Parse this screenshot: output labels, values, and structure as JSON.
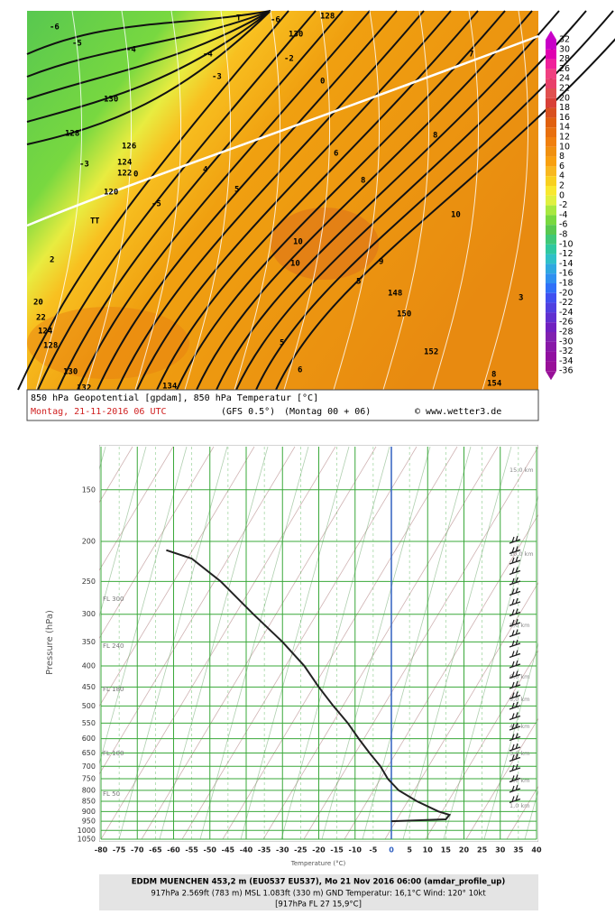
{
  "map": {
    "caption": "850 hPa Geopotential [gpdam], 850 hPa Temperatur [°C]",
    "date": "Montag, 21-11-2016  06 UTC",
    "model": "(GFS 0.5°)",
    "run": "(Montag 00 + 06)",
    "credit": "© www.wetter3.de",
    "labels": [
      "-6",
      "-5",
      "-4",
      "T",
      "-6",
      "128",
      "130",
      "-2",
      "0",
      "-4",
      "-3",
      "130",
      "128",
      "126",
      "124",
      "122",
      "120",
      "-3",
      "0",
      "-5",
      "T",
      "2",
      "4",
      "5",
      "6",
      "8",
      "10",
      "10",
      "5",
      "10",
      "9",
      "148",
      "150",
      "152",
      "154",
      "134",
      "132",
      "130",
      "128",
      "124",
      "22",
      "20",
      "T",
      "7",
      "8",
      "3",
      "5",
      "6",
      "8"
    ]
  },
  "colorbar": {
    "levels": [
      32,
      30,
      28,
      26,
      24,
      22,
      20,
      18,
      16,
      14,
      12,
      10,
      8,
      6,
      4,
      2,
      0,
      -2,
      -4,
      -6,
      -8,
      -10,
      -12,
      -14,
      -16,
      -18,
      -20,
      -22,
      -24,
      -26,
      -28,
      -30,
      -32,
      -34,
      -36
    ],
    "colors": [
      "#c800c8",
      "#e000b0",
      "#f0209a",
      "#f04080",
      "#e8406a",
      "#e05050",
      "#d84038",
      "#d85020",
      "#e06010",
      "#e87010",
      "#f08010",
      "#f09010",
      "#f8a010",
      "#f8b820",
      "#f8d020",
      "#f8e830",
      "#e0f040",
      "#a8e840",
      "#78d840",
      "#58c850",
      "#40c878",
      "#30c8a0",
      "#30c0c8",
      "#30a8e0",
      "#3090f0",
      "#3070f8",
      "#4050f0",
      "#5040e0",
      "#6030d0",
      "#7020c0",
      "#8020b0",
      "#8818a8",
      "#9010a0",
      "#981098"
    ]
  },
  "chart_data": {
    "type": "profile",
    "y_label": "Pressure (hPa)",
    "x_label": "Temperature (°C)",
    "log_y": true,
    "line_color": "#222222",
    "grid_color": "#3aa83a",
    "zero_color": "#3060c0",
    "xlim": [
      -80,
      40
    ],
    "xticks": [
      -80,
      -75,
      -70,
      -65,
      -60,
      -55,
      -50,
      -45,
      -40,
      -35,
      -30,
      -25,
      -20,
      -15,
      -10,
      -5,
      0,
      5,
      10,
      15,
      20,
      25,
      30,
      35,
      40
    ],
    "ylim": [
      1050,
      118
    ],
    "yticks": [
      150,
      200,
      250,
      300,
      350,
      400,
      450,
      500,
      550,
      600,
      650,
      700,
      750,
      800,
      850,
      900,
      950,
      1000,
      1050
    ],
    "pressure": [
      950,
      940,
      917,
      900,
      850,
      800,
      750,
      700,
      650,
      600,
      550,
      500,
      450,
      400,
      350,
      300,
      250,
      220,
      210
    ],
    "temperature": [
      0,
      15,
      16,
      13,
      7,
      2,
      -1,
      -3,
      -6,
      -9,
      -12,
      -16,
      -20,
      -24,
      -30,
      -38,
      -47,
      -55,
      -62
    ],
    "flight_levels": [
      "FL 300",
      "FL 240",
      "FL 180",
      "FL 100",
      "FL 50"
    ],
    "heights": [
      "15,0 km",
      "10,0 km",
      "8,0 km",
      "6,0 km",
      "5,0 km",
      "4,0 km",
      "3,0 km",
      "2,0 km",
      "1,0 km"
    ]
  },
  "caption": {
    "line1": "EDDM MUENCHEN 453,2 m (EU0537  EU537), Mo 21 Nov 2016 06:00 (amdar_profile_up)",
    "line2": "917hPa  2.569ft (783 m) MSL  1.083ft (330 m) GND  Temperatur: 16,1°C  Wind: 120°  10kt",
    "line3": "[917hPa  FL 27  15,9°C]"
  }
}
